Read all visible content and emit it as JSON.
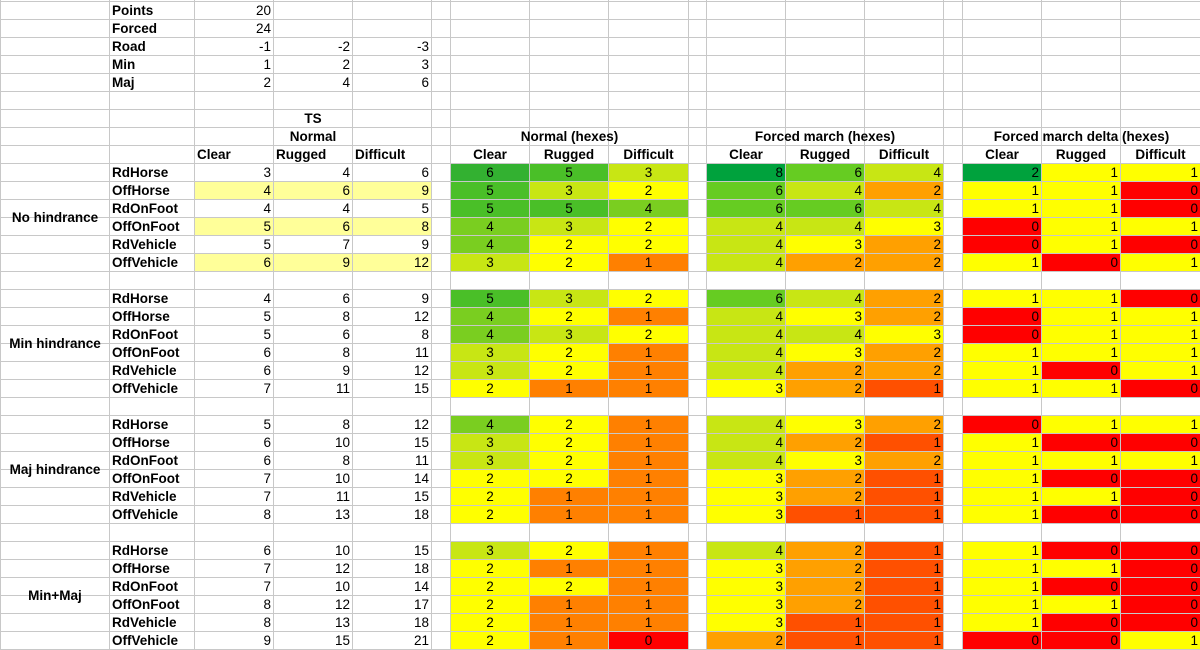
{
  "params": {
    "points": {
      "label": "Points",
      "value": "20"
    },
    "forced": {
      "label": "Forced",
      "value": "24"
    },
    "road": {
      "label": "Road",
      "values": [
        "-1",
        "-2",
        "-3"
      ]
    },
    "min": {
      "label": "Min",
      "values": [
        "1",
        "2",
        "3"
      ]
    },
    "maj": {
      "label": "Maj",
      "values": [
        "2",
        "4",
        "6"
      ]
    }
  },
  "headers": {
    "ts": "TS",
    "normal": "Normal",
    "normal_hexes": "Normal (hexes)",
    "forced_hexes": "Forced march (hexes)",
    "delta_hexes": "Forced march delta (hexes)",
    "terrain": [
      "Clear",
      "Rugged",
      "Difficult"
    ]
  },
  "colors": {
    "highlight": "#ffff99",
    "scale": {
      "0": "#ff0000",
      "1": "#ff8000",
      "2": "#ffff00",
      "3": "#c8e614",
      "4": "#7ace20",
      "5": "#4abf28",
      "6": "#33b131",
      "8": "#00a23d"
    },
    "forced_scale": {
      "1": "#ff5000",
      "2": "#ffa000",
      "3": "#ffff00",
      "4": "#c8e614",
      "6": "#66cc22",
      "8": "#00a23d"
    },
    "delta_scale": {
      "0": "#ff0000",
      "1": "#ffff00",
      "2": "#00a23d"
    }
  },
  "groups": [
    {
      "label": "No hindrance",
      "rows": [
        {
          "unit": "RdHorse",
          "ts": [
            "3",
            "4",
            "6"
          ],
          "hl": false,
          "normal": [
            "6",
            "5",
            "3"
          ],
          "forced": [
            "8",
            "6",
            "4"
          ],
          "delta": [
            "2",
            "1",
            "1"
          ]
        },
        {
          "unit": "OffHorse",
          "ts": [
            "4",
            "6",
            "9"
          ],
          "hl": true,
          "normal": [
            "5",
            "3",
            "2"
          ],
          "forced": [
            "6",
            "4",
            "2"
          ],
          "delta": [
            "1",
            "1",
            "0"
          ]
        },
        {
          "unit": "RdOnFoot",
          "ts": [
            "4",
            "4",
            "5"
          ],
          "hl": false,
          "normal": [
            "5",
            "5",
            "4"
          ],
          "forced": [
            "6",
            "6",
            "4"
          ],
          "delta": [
            "1",
            "1",
            "0"
          ]
        },
        {
          "unit": "OffOnFoot",
          "ts": [
            "5",
            "6",
            "8"
          ],
          "hl": true,
          "normal": [
            "4",
            "3",
            "2"
          ],
          "forced": [
            "4",
            "4",
            "3"
          ],
          "delta": [
            "0",
            "1",
            "1"
          ]
        },
        {
          "unit": "RdVehicle",
          "ts": [
            "5",
            "7",
            "9"
          ],
          "hl": false,
          "normal": [
            "4",
            "2",
            "2"
          ],
          "forced": [
            "4",
            "3",
            "2"
          ],
          "delta": [
            "0",
            "1",
            "0"
          ]
        },
        {
          "unit": "OffVehicle",
          "ts": [
            "6",
            "9",
            "12"
          ],
          "hl": true,
          "normal": [
            "3",
            "2",
            "1"
          ],
          "forced": [
            "4",
            "2",
            "2"
          ],
          "delta": [
            "1",
            "0",
            "1"
          ]
        }
      ]
    },
    {
      "label": "Min hindrance",
      "rows": [
        {
          "unit": "RdHorse",
          "ts": [
            "4",
            "6",
            "9"
          ],
          "hl": false,
          "normal": [
            "5",
            "3",
            "2"
          ],
          "forced": [
            "6",
            "4",
            "2"
          ],
          "delta": [
            "1",
            "1",
            "0"
          ]
        },
        {
          "unit": "OffHorse",
          "ts": [
            "5",
            "8",
            "12"
          ],
          "hl": false,
          "normal": [
            "4",
            "2",
            "1"
          ],
          "forced": [
            "4",
            "3",
            "2"
          ],
          "delta": [
            "0",
            "1",
            "1"
          ]
        },
        {
          "unit": "RdOnFoot",
          "ts": [
            "5",
            "6",
            "8"
          ],
          "hl": false,
          "normal": [
            "4",
            "3",
            "2"
          ],
          "forced": [
            "4",
            "4",
            "3"
          ],
          "delta": [
            "0",
            "1",
            "1"
          ]
        },
        {
          "unit": "OffOnFoot",
          "ts": [
            "6",
            "8",
            "11"
          ],
          "hl": false,
          "normal": [
            "3",
            "2",
            "1"
          ],
          "forced": [
            "4",
            "3",
            "2"
          ],
          "delta": [
            "1",
            "1",
            "1"
          ]
        },
        {
          "unit": "RdVehicle",
          "ts": [
            "6",
            "9",
            "12"
          ],
          "hl": false,
          "normal": [
            "3",
            "2",
            "1"
          ],
          "forced": [
            "4",
            "2",
            "2"
          ],
          "delta": [
            "1",
            "0",
            "1"
          ]
        },
        {
          "unit": "OffVehicle",
          "ts": [
            "7",
            "11",
            "15"
          ],
          "hl": false,
          "normal": [
            "2",
            "1",
            "1"
          ],
          "forced": [
            "3",
            "2",
            "1"
          ],
          "delta": [
            "1",
            "1",
            "0"
          ]
        }
      ]
    },
    {
      "label": "Maj hindrance",
      "rows": [
        {
          "unit": "RdHorse",
          "ts": [
            "5",
            "8",
            "12"
          ],
          "hl": false,
          "normal": [
            "4",
            "2",
            "1"
          ],
          "forced": [
            "4",
            "3",
            "2"
          ],
          "delta": [
            "0",
            "1",
            "1"
          ]
        },
        {
          "unit": "OffHorse",
          "ts": [
            "6",
            "10",
            "15"
          ],
          "hl": false,
          "normal": [
            "3",
            "2",
            "1"
          ],
          "forced": [
            "4",
            "2",
            "1"
          ],
          "delta": [
            "1",
            "0",
            "0"
          ]
        },
        {
          "unit": "RdOnFoot",
          "ts": [
            "6",
            "8",
            "11"
          ],
          "hl": false,
          "normal": [
            "3",
            "2",
            "1"
          ],
          "forced": [
            "4",
            "3",
            "2"
          ],
          "delta": [
            "1",
            "1",
            "1"
          ]
        },
        {
          "unit": "OffOnFoot",
          "ts": [
            "7",
            "10",
            "14"
          ],
          "hl": false,
          "normal": [
            "2",
            "2",
            "1"
          ],
          "forced": [
            "3",
            "2",
            "1"
          ],
          "delta": [
            "1",
            "0",
            "0"
          ]
        },
        {
          "unit": "RdVehicle",
          "ts": [
            "7",
            "11",
            "15"
          ],
          "hl": false,
          "normal": [
            "2",
            "1",
            "1"
          ],
          "forced": [
            "3",
            "2",
            "1"
          ],
          "delta": [
            "1",
            "1",
            "0"
          ]
        },
        {
          "unit": "OffVehicle",
          "ts": [
            "8",
            "13",
            "18"
          ],
          "hl": false,
          "normal": [
            "2",
            "1",
            "1"
          ],
          "forced": [
            "3",
            "1",
            "1"
          ],
          "delta": [
            "1",
            "0",
            "0"
          ]
        }
      ]
    },
    {
      "label": "Min+Maj",
      "rows": [
        {
          "unit": "RdHorse",
          "ts": [
            "6",
            "10",
            "15"
          ],
          "hl": false,
          "normal": [
            "3",
            "2",
            "1"
          ],
          "forced": [
            "4",
            "2",
            "1"
          ],
          "delta": [
            "1",
            "0",
            "0"
          ]
        },
        {
          "unit": "OffHorse",
          "ts": [
            "7",
            "12",
            "18"
          ],
          "hl": false,
          "normal": [
            "2",
            "1",
            "1"
          ],
          "forced": [
            "3",
            "2",
            "1"
          ],
          "delta": [
            "1",
            "1",
            "0"
          ]
        },
        {
          "unit": "RdOnFoot",
          "ts": [
            "7",
            "10",
            "14"
          ],
          "hl": false,
          "normal": [
            "2",
            "2",
            "1"
          ],
          "forced": [
            "3",
            "2",
            "1"
          ],
          "delta": [
            "1",
            "0",
            "0"
          ]
        },
        {
          "unit": "OffOnFoot",
          "ts": [
            "8",
            "12",
            "17"
          ],
          "hl": false,
          "normal": [
            "2",
            "1",
            "1"
          ],
          "forced": [
            "3",
            "2",
            "1"
          ],
          "delta": [
            "1",
            "1",
            "0"
          ]
        },
        {
          "unit": "RdVehicle",
          "ts": [
            "8",
            "13",
            "18"
          ],
          "hl": false,
          "normal": [
            "2",
            "1",
            "1"
          ],
          "forced": [
            "3",
            "1",
            "1"
          ],
          "delta": [
            "1",
            "0",
            "0"
          ]
        },
        {
          "unit": "OffVehicle",
          "ts": [
            "9",
            "15",
            "21"
          ],
          "hl": false,
          "normal": [
            "2",
            "1",
            "0"
          ],
          "forced": [
            "2",
            "1",
            "1"
          ],
          "delta": [
            "0",
            "0",
            "1"
          ]
        }
      ]
    }
  ]
}
